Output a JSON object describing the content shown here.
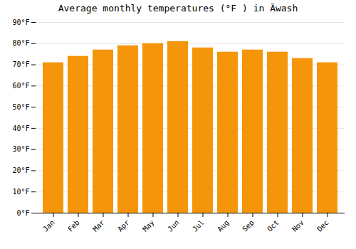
{
  "chart_data": {
    "type": "bar",
    "title": "Average monthly temperatures (°F ) in Ä​wash",
    "categories": [
      "Jan",
      "Feb",
      "Mar",
      "Apr",
      "May",
      "Jun",
      "Jul",
      "Aug",
      "Sep",
      "Oct",
      "Nov",
      "Dec"
    ],
    "values": [
      71,
      74,
      77,
      79,
      80,
      81,
      78,
      76,
      77,
      76,
      73,
      71
    ],
    "color": "#F5960A",
    "ylim": [
      0,
      90
    ],
    "yticks": [
      {
        "value": 0,
        "label": "0°F"
      },
      {
        "value": 10,
        "label": "10°F"
      },
      {
        "value": 20,
        "label": "20°F"
      },
      {
        "value": 30,
        "label": "30°F"
      },
      {
        "value": 40,
        "label": "40°F"
      },
      {
        "value": 50,
        "label": "50°F"
      },
      {
        "value": 60,
        "label": "60°F"
      },
      {
        "value": 70,
        "label": "70°F"
      },
      {
        "value": 80,
        "label": "80°F"
      },
      {
        "value": 90,
        "label": "90°F"
      }
    ],
    "grid": true
  }
}
